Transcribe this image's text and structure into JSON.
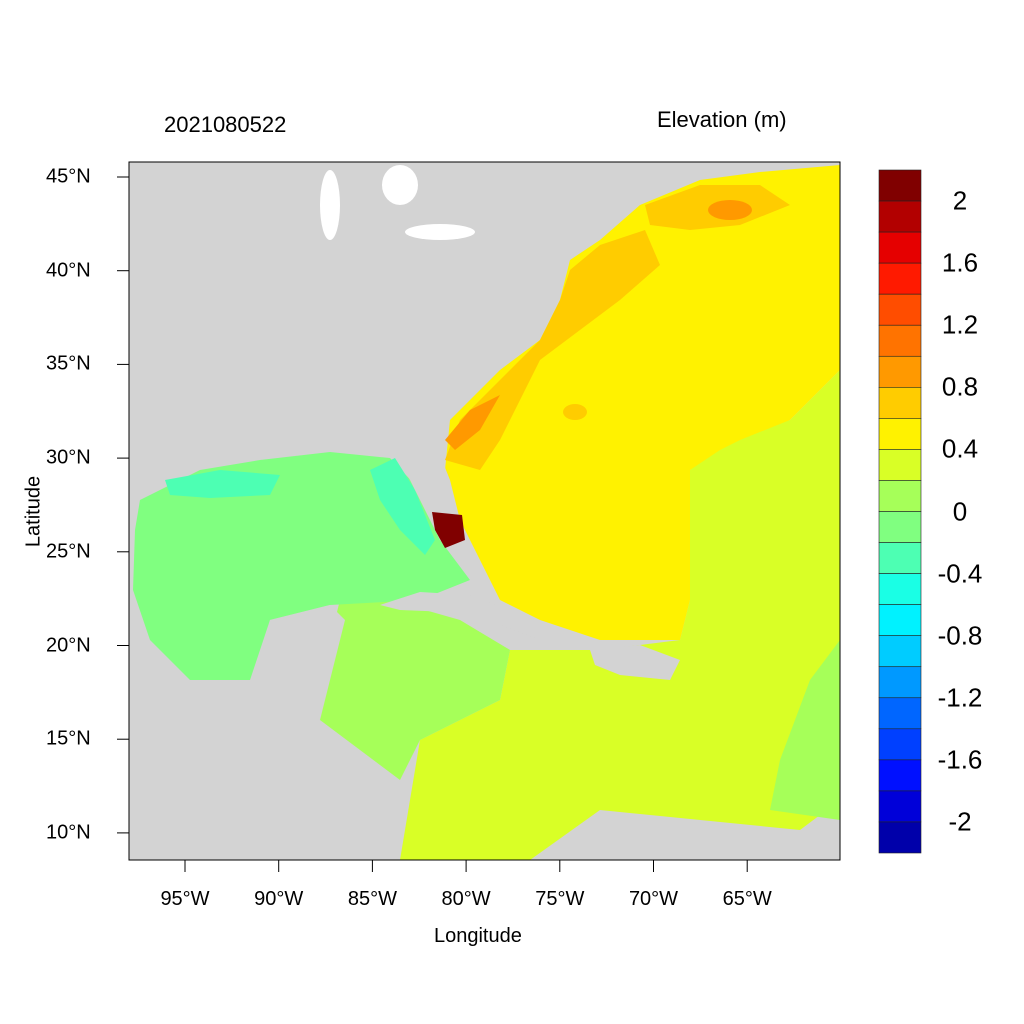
{
  "title_left": "2021080522",
  "title_right": "Elevation (m)",
  "xlabel": "Longitude",
  "ylabel": "Latitude",
  "x_ticks": [
    "95°W",
    "90°W",
    "85°W",
    "80°W",
    "75°W",
    "70°W",
    "65°W"
  ],
  "y_ticks": [
    "45°N",
    "40°N",
    "35°N",
    "30°N",
    "25°N",
    "20°N",
    "15°N",
    "10°N"
  ],
  "map": {
    "type": "filled contour map",
    "extent_lon": [
      -98,
      -60
    ],
    "extent_lat": [
      8.5,
      45.8
    ],
    "land_color": "#D3D3D3"
  },
  "colorbar": {
    "labels": [
      "2",
      "1.6",
      "1.2",
      "0.8",
      "0.4",
      "0",
      "-0.4",
      "-0.8",
      "-1.2",
      "-1.6",
      "-2"
    ],
    "colors": [
      "#800000",
      "#B20000",
      "#E50000",
      "#FF1A00",
      "#FF4D00",
      "#FF7300",
      "#FF9900",
      "#FFCC00",
      "#FFF200",
      "#D9FF26",
      "#A6FF59",
      "#80FF80",
      "#4DFFB3",
      "#1AFFE5",
      "#00F2FF",
      "#00CCFF",
      "#0099FF",
      "#0066FF",
      "#0040FF",
      "#0010FF",
      "#0000D9",
      "#0000AA"
    ]
  }
}
